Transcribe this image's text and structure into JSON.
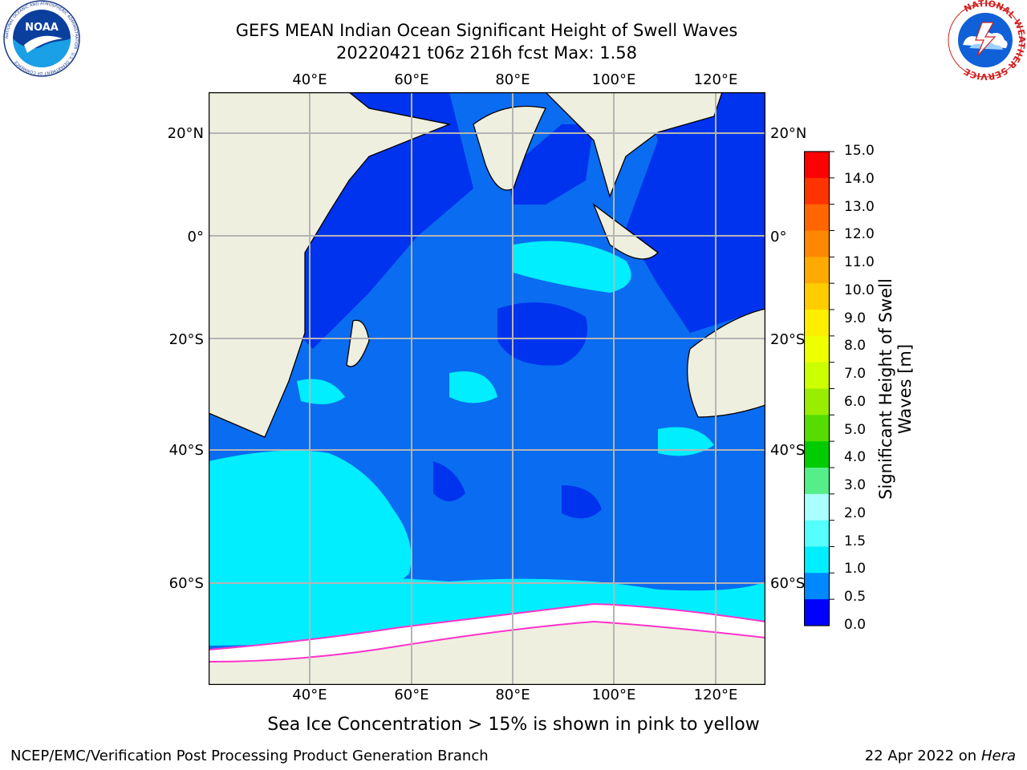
{
  "title_line1": "GEFS MEAN Indian Ocean Significant Height of Swell Waves",
  "title_line2": "20220421 t06z 216h fcst   Max: 1.58",
  "subtitle": "Sea Ice Concentration > 15% is shown in pink to yellow",
  "footer_left": "NCEP/EMC/Verification Post Processing Product Generation Branch",
  "footer_right_date": "22 Apr 2022 on ",
  "footer_right_host": "Hera",
  "lon_labels": [
    "40°E",
    "60°E",
    "80°E",
    "100°E",
    "120°E"
  ],
  "lat_labels": [
    "20°N",
    "0°",
    "20°S",
    "40°S",
    "60°S"
  ],
  "colorbar": {
    "title": "Significant Height of Swell Waves [m]",
    "labels": [
      "15.0",
      "14.0",
      "13.0",
      "12.0",
      "11.0",
      "10.0",
      "9.0",
      "8.0",
      "7.0",
      "6.0",
      "5.0",
      "4.0",
      "3.0",
      "2.0",
      "1.5",
      "1.0",
      "0.5",
      "0.0"
    ],
    "colors": [
      "#ff0000",
      "#ff3300",
      "#ff6600",
      "#ff8800",
      "#ffaa00",
      "#ffcc00",
      "#ffee00",
      "#eeff00",
      "#ccff00",
      "#99ee00",
      "#55dd00",
      "#00cc00",
      "#55ee88",
      "#aaffff",
      "#55ffff",
      "#00eeff",
      "#0088ff",
      "#0000ff"
    ]
  },
  "colors": {
    "land": "#efefdf",
    "deep_low": "#0033ee",
    "mid": "#0a6cf0",
    "cyan": "#00eeff",
    "ice": "#ffffff"
  },
  "logos": {
    "noaa": "NOAA",
    "noaa_ring": "NATIONAL OCEANIC AND ATMOSPHERIC ADMINISTRATION · U.S. DEPARTMENT OF COMMERCE",
    "nws_ring": "NATIONAL WEATHER SERVICE"
  }
}
